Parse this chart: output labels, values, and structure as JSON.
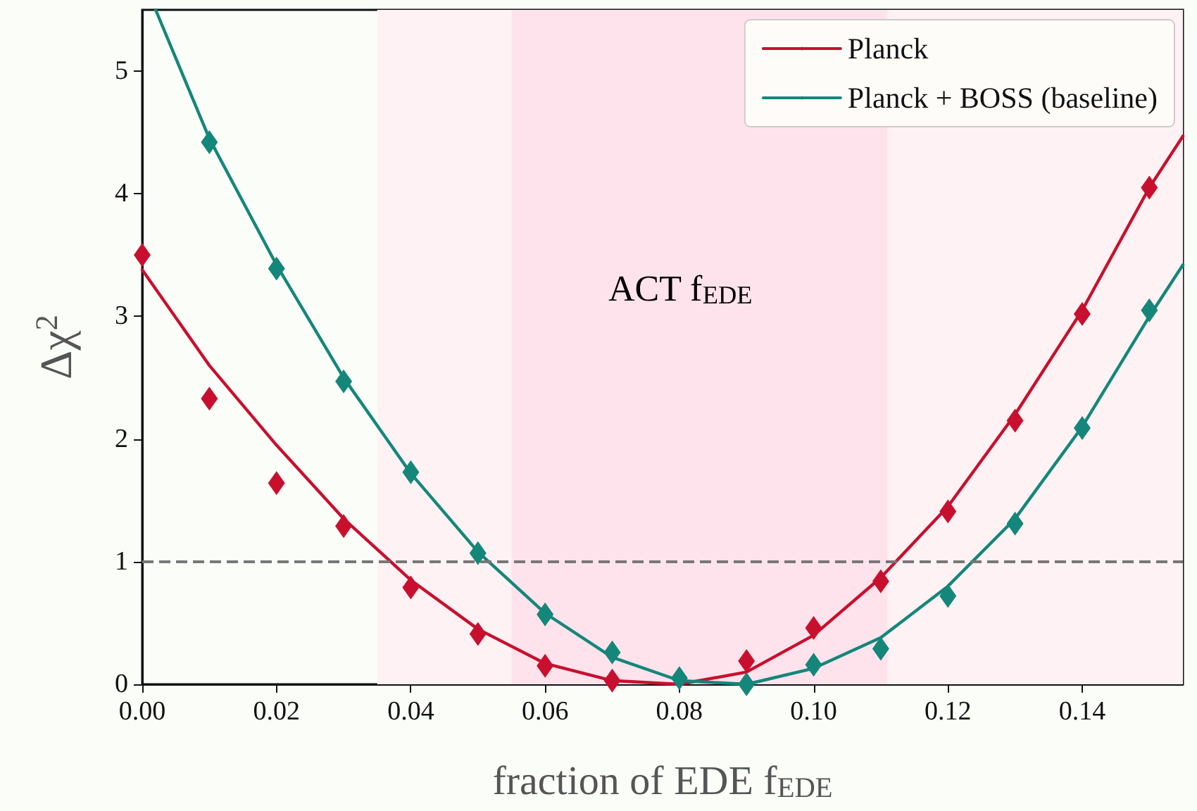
{
  "chart_data": {
    "type": "line",
    "xlabel": "fraction of EDE f$_{EDE}$",
    "ylabel": "Δχ$^{2}$",
    "xlim": [
      0,
      0.155
    ],
    "xticks": [
      {
        "value": 0,
        "label": "0.00"
      },
      {
        "value": 0.02,
        "label": "0.02"
      },
      {
        "value": 0.04,
        "label": "0.04"
      },
      {
        "value": 0.06,
        "label": "0.06"
      },
      {
        "value": 0.08,
        "label": "0.08"
      },
      {
        "value": 0.1,
        "label": "0.10"
      },
      {
        "value": 0.12,
        "label": "0.12"
      },
      {
        "value": 0.14,
        "label": "0.14"
      }
    ],
    "ylim": [
      0,
      5.5
    ],
    "yticks": [
      0,
      1,
      2,
      3,
      4,
      5
    ],
    "grid": false,
    "legend": "top right",
    "series": [
      {
        "name": "Planck",
        "color": "#c8102e",
        "marker": "none",
        "x": [
          0,
          0.01,
          0.02,
          0.03,
          0.04,
          0.05,
          0.06,
          0.07,
          0.08,
          0.09,
          0.1,
          0.11,
          0.12,
          0.13,
          0.14,
          0.15,
          0.155
        ],
        "values": [
          3.38,
          2.6,
          1.95,
          1.35,
          0.85,
          0.45,
          0.17,
          0.03,
          0.0,
          0.1,
          0.4,
          0.87,
          1.45,
          2.2,
          3.05,
          4.05,
          4.47
        ]
      },
      {
        "name": "Planck + BOSS (baseline)",
        "color": "#14877a",
        "marker": "none",
        "x": [
          0.002,
          0.01,
          0.02,
          0.03,
          0.04,
          0.05,
          0.06,
          0.07,
          0.08,
          0.09,
          0.1,
          0.11,
          0.12,
          0.13,
          0.14,
          0.15,
          0.155
        ],
        "values": [
          5.5,
          4.45,
          3.42,
          2.5,
          1.72,
          1.08,
          0.58,
          0.22,
          0.03,
          0.0,
          0.13,
          0.38,
          0.8,
          1.35,
          2.1,
          3.0,
          3.42
        ]
      },
      {
        "type": "scatter",
        "color": "#c8102e",
        "marker": "diamond",
        "x": [
          0,
          0.01,
          0.02,
          0.03,
          0.04,
          0.05,
          0.06,
          0.07,
          0.08,
          0.09,
          0.1,
          0.11,
          0.12,
          0.13,
          0.14,
          0.15
        ],
        "values": [
          3.5,
          2.33,
          1.64,
          1.29,
          0.79,
          0.41,
          0.15,
          0.03,
          null,
          0.19,
          0.46,
          0.84,
          1.41,
          2.15,
          3.02,
          4.05
        ]
      },
      {
        "type": "scatter",
        "color": "#14877a",
        "marker": "diamond",
        "x": [
          0.01,
          0.02,
          0.03,
          0.04,
          0.05,
          0.06,
          0.07,
          0.08,
          0.09,
          0.1,
          0.11,
          0.12,
          0.13,
          0.14,
          0.15
        ],
        "values": [
          4.42,
          3.39,
          2.47,
          1.73,
          1.07,
          0.57,
          0.26,
          0.05,
          0.0,
          0.16,
          0.29,
          0.72,
          1.31,
          2.09,
          3.05
        ]
      }
    ],
    "ref_lines": [
      {
        "axis": "y",
        "value": 1,
        "color": "#777777",
        "line_style": "dashed"
      }
    ],
    "bands": [
      {
        "axis": "x",
        "from": 0.035,
        "to": 0.155,
        "color": "#fff2f4"
      },
      {
        "axis": "x",
        "from": 0.055,
        "to": 0.111,
        "color": "#ffe3ec"
      }
    ],
    "annotations": [
      "ACT f$_{EDE}$"
    ]
  }
}
